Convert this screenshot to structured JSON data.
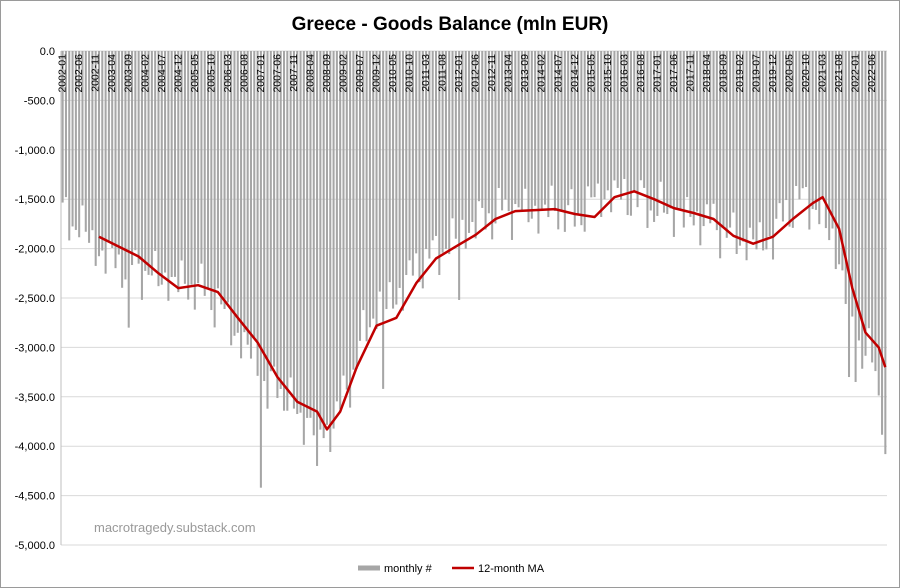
{
  "chart_data": {
    "type": "bar",
    "title": "Greece - Goods Balance (mln EUR)",
    "watermark": "macrotragedy.substack.com",
    "ylim": [
      -5000,
      0
    ],
    "y_ticks": [
      0,
      -500,
      -1000,
      -1500,
      -2000,
      -2500,
      -3000,
      -3500,
      -4000,
      -4500,
      -5000
    ],
    "y_tick_labels": [
      "0.0",
      "-500.0",
      "-1,000.0",
      "-1,500.0",
      "-2,000.0",
      "-2,500.0",
      "-3,000.0",
      "-3,500.0",
      "-4,000.0",
      "-4,500.0",
      "-5,000.0"
    ],
    "x_start": "2002-01",
    "x_end": "2022-10",
    "x_tick_labels": [
      "2002-01",
      "2002-06",
      "2002-11",
      "2003-04",
      "2003-09",
      "2004-02",
      "2004-07",
      "2004-12",
      "2005-05",
      "2005-10",
      "2006-03",
      "2006-08",
      "2007-01",
      "2007-06",
      "2007-11",
      "2008-04",
      "2008-09",
      "2009-02",
      "2009-07",
      "2009-12",
      "2010-05",
      "2010-10",
      "2011-03",
      "2011-08",
      "2012-01",
      "2012-06",
      "2012-11",
      "2013-04",
      "2013-09",
      "2014-02",
      "2014-07",
      "2014-12",
      "2015-05",
      "2015-10",
      "2016-03",
      "2016-08",
      "2017-01",
      "2017-06",
      "2017-11",
      "2018-04",
      "2018-09",
      "2019-02",
      "2019-07",
      "2019-12",
      "2020-05",
      "2020-10",
      "2021-03",
      "2021-08",
      "2022-01",
      "2022-06"
    ],
    "grid": true,
    "legend_position": "bottom",
    "series": [
      {
        "name": "monthly #",
        "type": "bar",
        "color": "#a6a6a6",
        "anchors": [
          [
            "2002-01",
            -1700
          ],
          [
            "2002-06",
            -1750
          ],
          [
            "2002-12",
            -2050
          ],
          [
            "2003-06",
            -2150
          ],
          [
            "2003-12",
            -2200
          ],
          [
            "2004-06",
            -2300
          ],
          [
            "2004-12",
            -2350
          ],
          [
            "2005-06",
            -2400
          ],
          [
            "2005-12",
            -2550
          ],
          [
            "2006-06",
            -2900
          ],
          [
            "2006-12",
            -3150
          ],
          [
            "2007-03",
            -3500
          ],
          [
            "2007-06",
            -3350
          ],
          [
            "2007-12",
            -3700
          ],
          [
            "2008-06",
            -3800
          ],
          [
            "2008-09",
            -3900
          ],
          [
            "2009-03",
            -3450
          ],
          [
            "2009-07",
            -3000
          ],
          [
            "2009-12",
            -2600
          ],
          [
            "2010-06",
            -2500
          ],
          [
            "2010-12",
            -2200
          ],
          [
            "2011-06",
            -2050
          ],
          [
            "2011-12",
            -1900
          ],
          [
            "2012-06",
            -1750
          ],
          [
            "2012-12",
            -1650
          ],
          [
            "2013-06",
            -1600
          ],
          [
            "2013-12",
            -1650
          ],
          [
            "2014-06",
            -1600
          ],
          [
            "2014-12",
            -1700
          ],
          [
            "2015-06",
            -1500
          ],
          [
            "2015-12",
            -1450
          ],
          [
            "2016-06",
            -1500
          ],
          [
            "2016-12",
            -1600
          ],
          [
            "2017-06",
            -1650
          ],
          [
            "2017-12",
            -1700
          ],
          [
            "2018-06",
            -1750
          ],
          [
            "2018-12",
            -1900
          ],
          [
            "2019-06",
            -1950
          ],
          [
            "2019-12",
            -1900
          ],
          [
            "2020-04",
            -1600
          ],
          [
            "2020-10",
            -1500
          ],
          [
            "2021-03",
            -1700
          ],
          [
            "2021-08",
            -2100
          ],
          [
            "2021-12",
            -2800
          ],
          [
            "2022-03",
            -3000
          ],
          [
            "2022-06",
            -3150
          ],
          [
            "2022-09",
            -3600
          ],
          [
            "2022-10",
            -4080
          ]
        ],
        "highlights": [
          [
            "2007-01",
            -4420
          ],
          [
            "2008-06",
            -4200
          ],
          [
            "2003-09",
            -2800
          ],
          [
            "2012-01",
            -2520
          ],
          [
            "2010-02",
            -3420
          ],
          [
            "2022-10",
            -4080
          ],
          [
            "2022-01",
            -3350
          ],
          [
            "2021-11",
            -3300
          ]
        ]
      },
      {
        "name": "12-month MA",
        "type": "line",
        "color": "#c00000",
        "points": [
          [
            "2002-12",
            -1880
          ],
          [
            "2003-06",
            -1980
          ],
          [
            "2003-12",
            -2080
          ],
          [
            "2004-06",
            -2250
          ],
          [
            "2004-12",
            -2400
          ],
          [
            "2005-06",
            -2370
          ],
          [
            "2005-12",
            -2440
          ],
          [
            "2006-06",
            -2700
          ],
          [
            "2006-12",
            -2950
          ],
          [
            "2007-06",
            -3300
          ],
          [
            "2007-12",
            -3550
          ],
          [
            "2008-06",
            -3650
          ],
          [
            "2008-09",
            -3830
          ],
          [
            "2009-01",
            -3650
          ],
          [
            "2009-06",
            -3200
          ],
          [
            "2009-12",
            -2780
          ],
          [
            "2010-06",
            -2700
          ],
          [
            "2010-12",
            -2350
          ],
          [
            "2011-06",
            -2100
          ],
          [
            "2011-12",
            -1980
          ],
          [
            "2012-06",
            -1860
          ],
          [
            "2012-12",
            -1700
          ],
          [
            "2013-06",
            -1620
          ],
          [
            "2013-12",
            -1610
          ],
          [
            "2014-06",
            -1600
          ],
          [
            "2014-12",
            -1650
          ],
          [
            "2015-06",
            -1680
          ],
          [
            "2015-12",
            -1480
          ],
          [
            "2016-06",
            -1420
          ],
          [
            "2016-12",
            -1500
          ],
          [
            "2017-06",
            -1590
          ],
          [
            "2017-12",
            -1640
          ],
          [
            "2018-06",
            -1700
          ],
          [
            "2018-12",
            -1870
          ],
          [
            "2019-06",
            -1950
          ],
          [
            "2019-12",
            -1880
          ],
          [
            "2020-06",
            -1700
          ],
          [
            "2020-12",
            -1540
          ],
          [
            "2021-03",
            -1480
          ],
          [
            "2021-08",
            -1800
          ],
          [
            "2021-12",
            -2400
          ],
          [
            "2022-04",
            -2850
          ],
          [
            "2022-08",
            -3000
          ],
          [
            "2022-10",
            -3200
          ]
        ]
      }
    ]
  }
}
